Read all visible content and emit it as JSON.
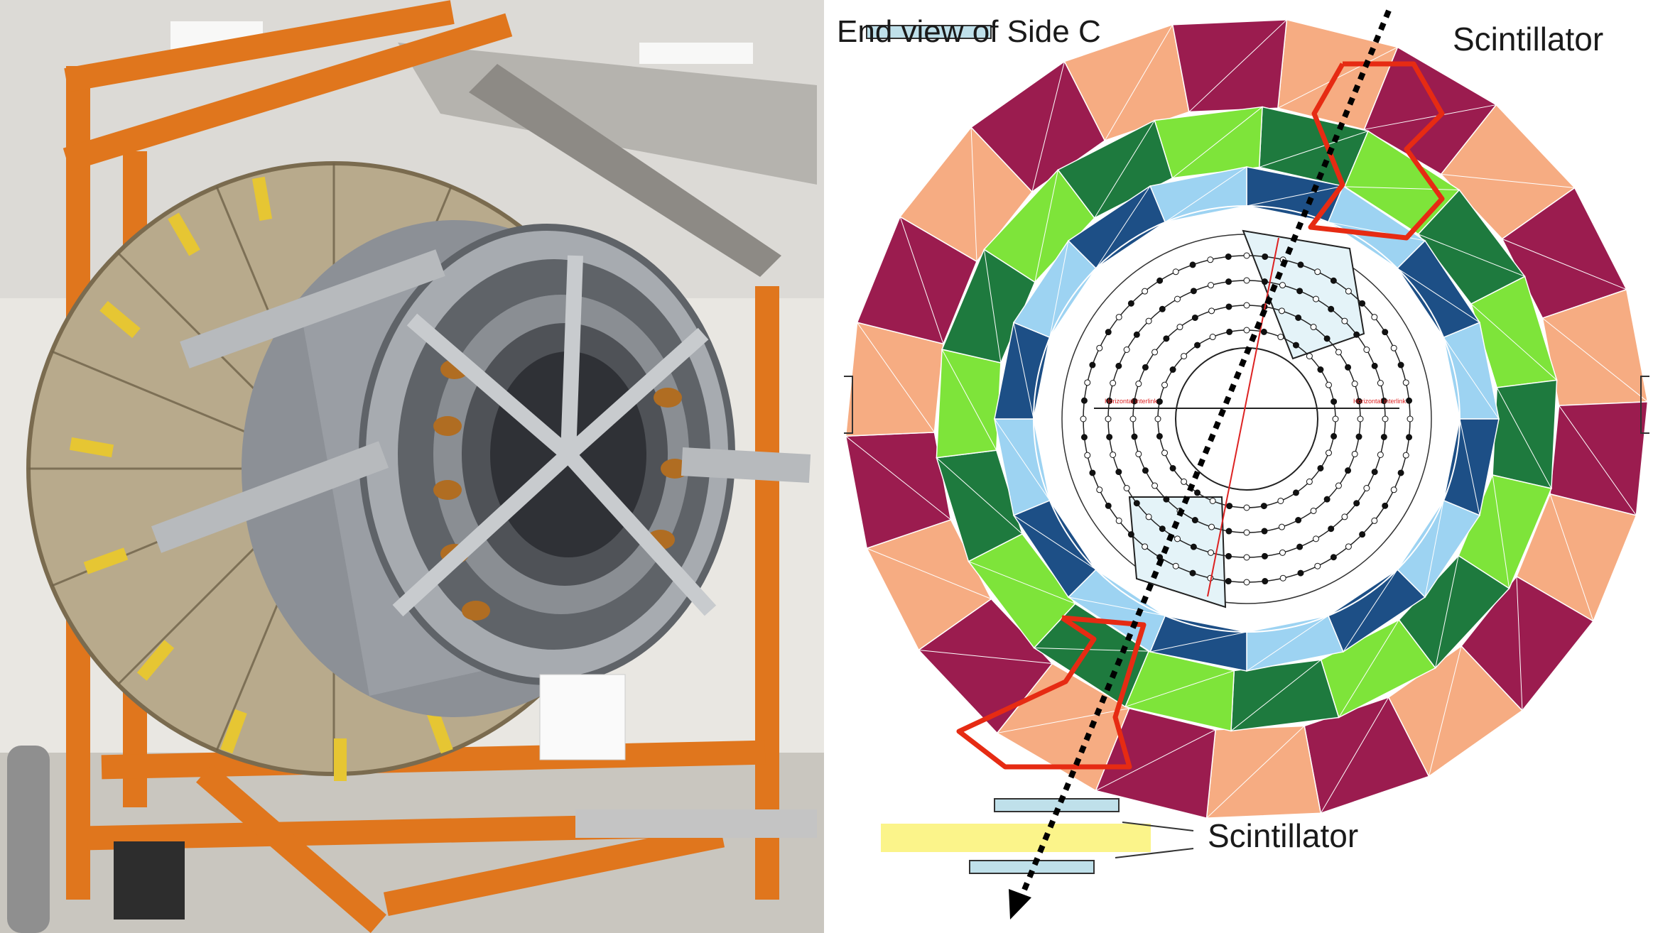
{
  "diagram": {
    "title": "End view of Side C",
    "scintillator_top_label": "Scintillator",
    "scintillator_bottom_label": "Scintillator",
    "center_label_left": "Horizontal interlink",
    "center_label_right": "Horizontal interlink"
  },
  "ring_colors": {
    "outer": [
      "#f6ac82",
      "#9b1c4f"
    ],
    "green": [
      "#1e7a3e",
      "#7ee43a"
    ],
    "blue": [
      "#1d4f86",
      "#9dd3f2"
    ],
    "highlight": "#e62b13",
    "scintillator_blue": "#bfe0ea",
    "scintillator_yellow": "#fbf48a"
  },
  "photo": {
    "frame_color": "#e0761d",
    "cylinder_color": "#9a9ea4"
  }
}
